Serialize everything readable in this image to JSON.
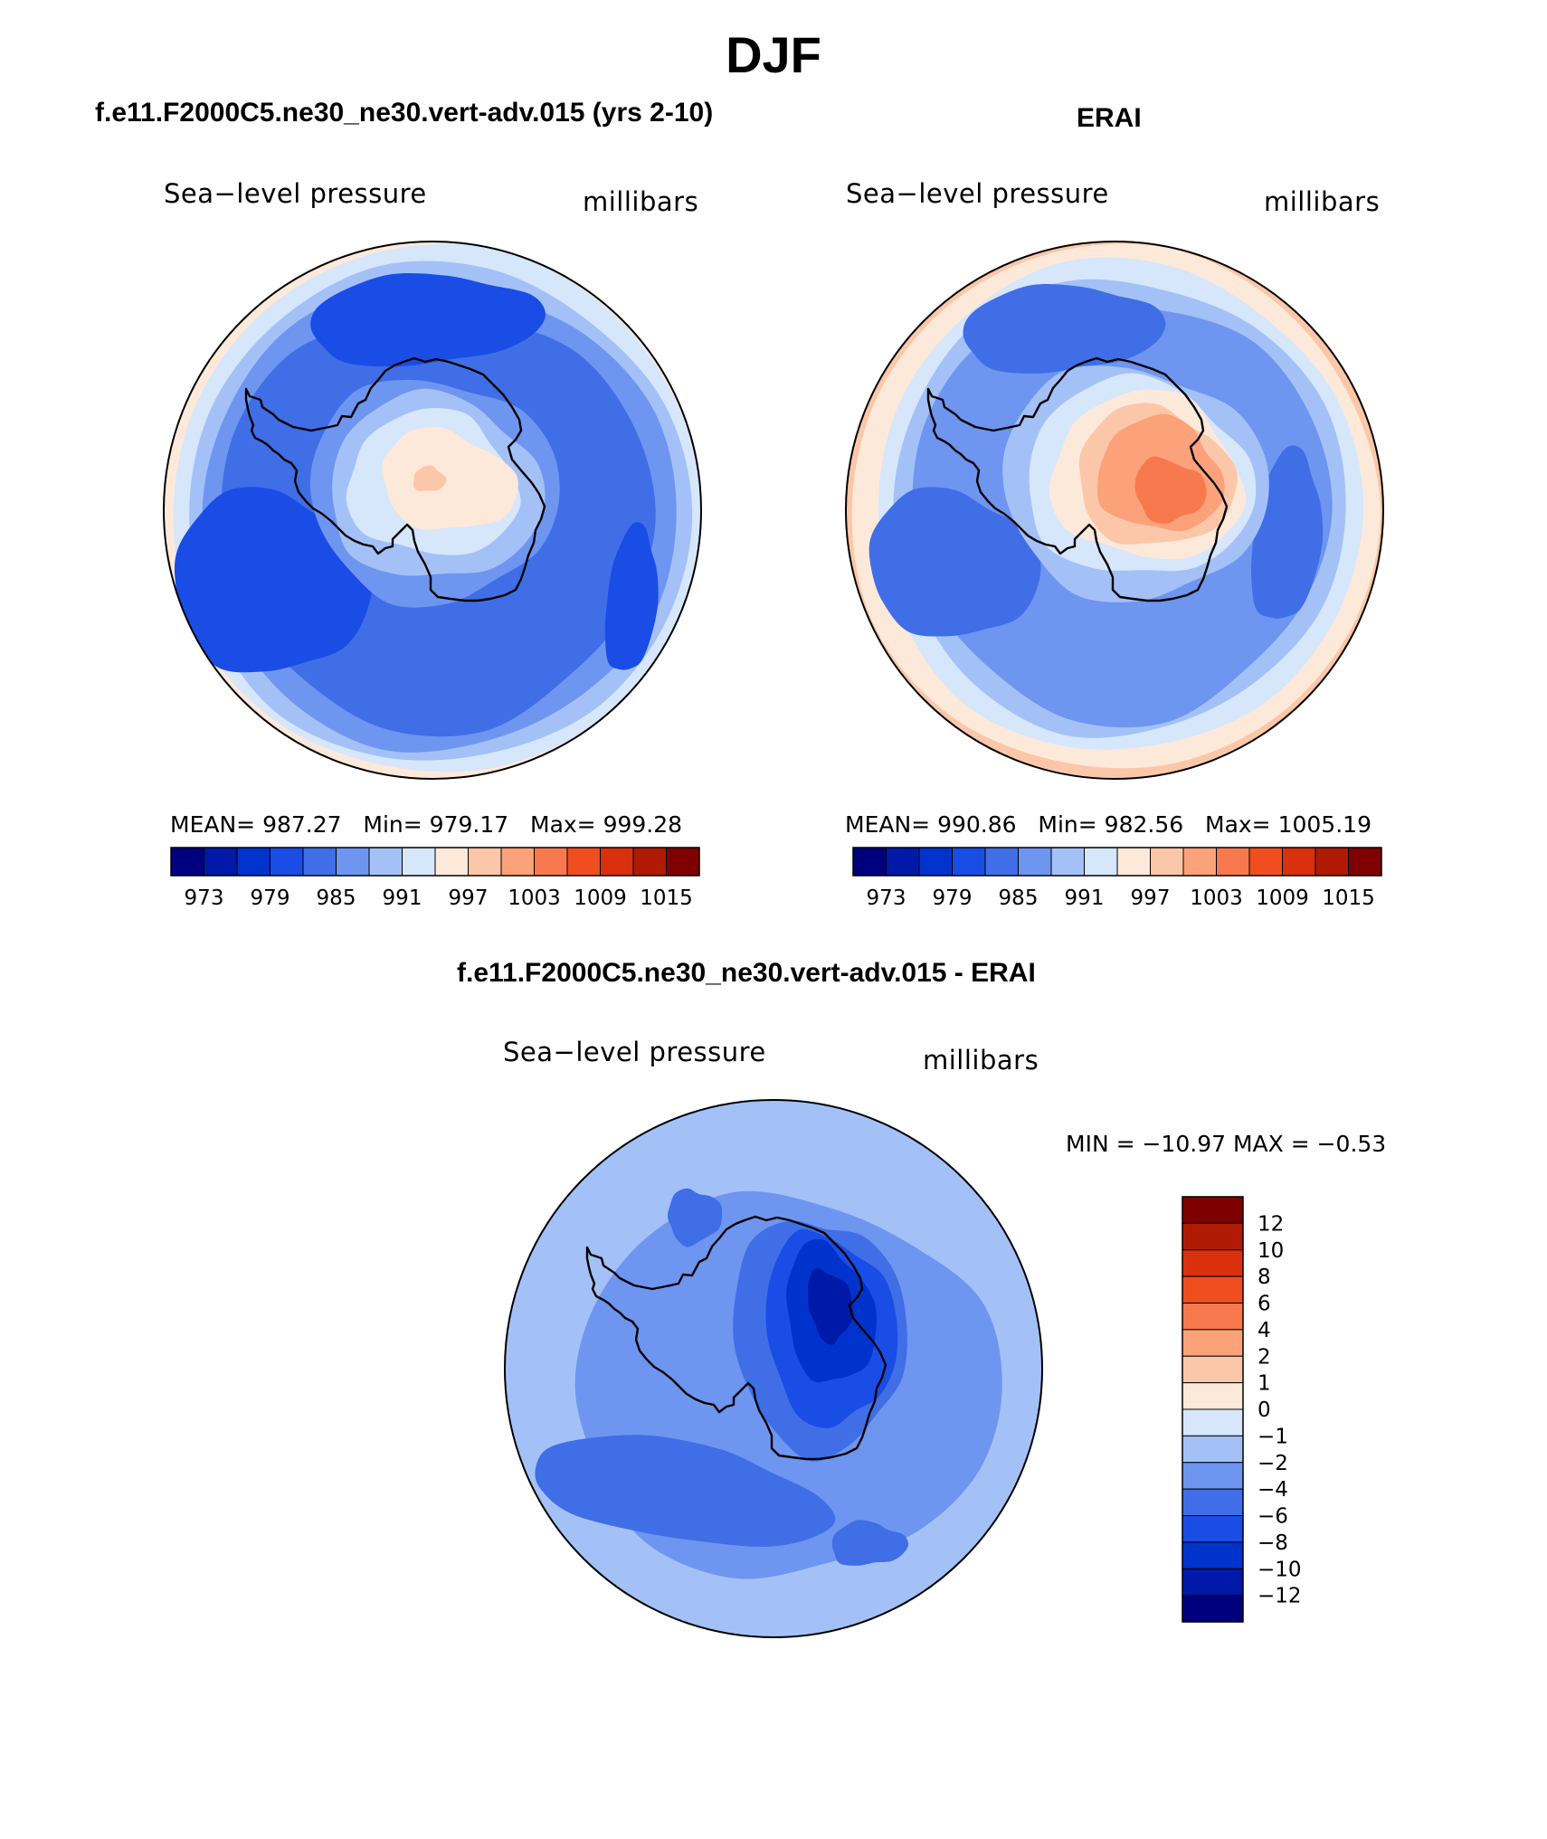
{
  "title": "DJF",
  "panels": {
    "model": {
      "title": "f.e11.F2000C5.ne30_ne30.vert-adv.015 (yrs 2-10)",
      "variable": "Sea−level pressure",
      "units": "millibars",
      "stats": {
        "mean_label": "MEAN=",
        "mean": "987.27",
        "min_label": "Min=",
        "min": "979.17",
        "max_label": "Max=",
        "max": "999.28"
      }
    },
    "obs": {
      "title": "ERAI",
      "variable": "Sea−level pressure",
      "units": "millibars",
      "stats": {
        "mean_label": "MEAN=",
        "mean": "990.86",
        "min_label": "Min=",
        "min": "982.56",
        "max_label": "Max=",
        "max": "1005.19"
      }
    },
    "diff": {
      "title": "f.e11.F2000C5.ne30_ne30.vert-adv.015 - ERAI",
      "variable": "Sea−level pressure",
      "units": "millibars",
      "minmax": "MIN = −10.97 MAX =  −0.53"
    }
  },
  "chart_data": [
    {
      "type": "heatmap",
      "projection": "south polar stereographic",
      "title": "f.e11.F2000C5.ne30_ne30.vert-adv.015 (yrs 2-10)",
      "variable": "Sea-level pressure",
      "units": "millibars",
      "mean": 987.27,
      "min": 979.17,
      "max": 999.28,
      "colorbar": {
        "levels": [
          973,
          976,
          979,
          982,
          985,
          988,
          991,
          994,
          997,
          1000,
          1003,
          1006,
          1009,
          1012,
          1015
        ],
        "tick_labels": [
          "973",
          "979",
          "985",
          "991",
          "997",
          "1003",
          "1009",
          "1015"
        ],
        "colors": [
          "#00007f",
          "#0019a8",
          "#0033cc",
          "#1a4ce6",
          "#3f6ee6",
          "#6e95f0",
          "#a3c1f7",
          "#d6e6fb",
          "#fde9d9",
          "#fcc7a8",
          "#fba27a",
          "#f8794d",
          "#f04e1e",
          "#d9300d",
          "#b01a05",
          "#7f0000"
        ]
      }
    },
    {
      "type": "heatmap",
      "projection": "south polar stereographic",
      "title": "ERAI",
      "variable": "Sea-level pressure",
      "units": "millibars",
      "mean": 990.86,
      "min": 982.56,
      "max": 1005.19,
      "colorbar": {
        "levels": [
          973,
          976,
          979,
          982,
          985,
          988,
          991,
          994,
          997,
          1000,
          1003,
          1006,
          1009,
          1012,
          1015
        ],
        "tick_labels": [
          "973",
          "979",
          "985",
          "991",
          "997",
          "1003",
          "1009",
          "1015"
        ],
        "colors": [
          "#00007f",
          "#0019a8",
          "#0033cc",
          "#1a4ce6",
          "#3f6ee6",
          "#6e95f0",
          "#a3c1f7",
          "#d6e6fb",
          "#fde9d9",
          "#fcc7a8",
          "#fba27a",
          "#f8794d",
          "#f04e1e",
          "#d9300d",
          "#b01a05",
          "#7f0000"
        ]
      }
    },
    {
      "type": "heatmap",
      "projection": "south polar stereographic",
      "title": "f.e11.F2000C5.ne30_ne30.vert-adv.015 - ERAI",
      "variable": "Sea-level pressure",
      "units": "millibars",
      "min": -10.97,
      "max": -0.53,
      "colorbar": {
        "orientation": "vertical",
        "levels": [
          12,
          10,
          8,
          6,
          4,
          2,
          1,
          0,
          -1,
          -2,
          -4,
          -6,
          -8,
          -10,
          -12
        ],
        "tick_labels": [
          "12",
          "10",
          "8",
          "6",
          "4",
          "2",
          "1",
          "0",
          "−1",
          "−2",
          "−4",
          "−6",
          "−8",
          "−10",
          "−12"
        ],
        "colors": [
          "#7f0000",
          "#b01a05",
          "#d9300d",
          "#f04e1e",
          "#f8794d",
          "#fba27a",
          "#fcc7a8",
          "#fde9d9",
          "#d6e6fb",
          "#a3c1f7",
          "#6e95f0",
          "#3f6ee6",
          "#1a4ce6",
          "#0033cc",
          "#0019a8",
          "#00007f"
        ]
      }
    }
  ]
}
